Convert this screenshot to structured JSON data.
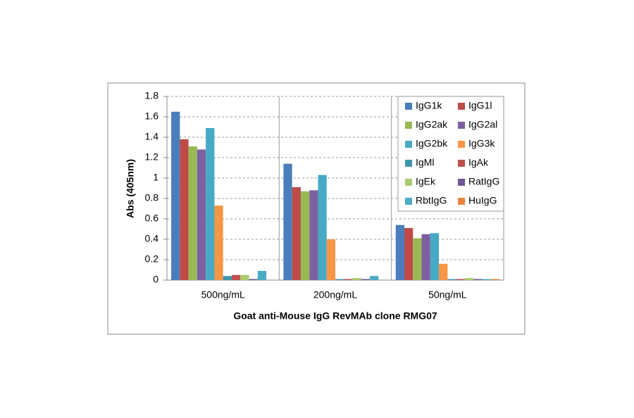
{
  "chart_data": {
    "type": "bar",
    "xlabel": "Goat anti-Mouse IgG RevMAb clone RMG07",
    "ylabel": "Abs (405nm)",
    "categories": [
      "500ng/mL",
      "200ng/mL",
      "50ng/mL"
    ],
    "series": [
      {
        "name": "IgG1k",
        "color": "#4a7ebb",
        "values": [
          1.65,
          1.14,
          0.54
        ]
      },
      {
        "name": "IgG1l",
        "color": "#be4b48",
        "values": [
          1.38,
          0.91,
          0.51
        ]
      },
      {
        "name": "IgG2ak",
        "color": "#98b954",
        "values": [
          1.31,
          0.87,
          0.41
        ]
      },
      {
        "name": "IgG2al",
        "color": "#7d60a0",
        "values": [
          1.28,
          0.88,
          0.45
        ]
      },
      {
        "name": "IgG2bk",
        "color": "#46aac5",
        "values": [
          1.49,
          1.03,
          0.46
        ]
      },
      {
        "name": "IgG3k",
        "color": "#f69646",
        "values": [
          0.73,
          0.4,
          0.16
        ]
      },
      {
        "name": "IgMl",
        "color": "#3d96ae",
        "values": [
          0.04,
          0.01,
          0.01
        ]
      },
      {
        "name": "IgAk",
        "color": "#c0504d",
        "values": [
          0.05,
          0.01,
          0.01
        ]
      },
      {
        "name": "IgEk",
        "color": "#a9cb6c",
        "values": [
          0.05,
          0.02,
          0.02
        ]
      },
      {
        "name": "RatIgG",
        "color": "#6f5693",
        "values": [
          0.01,
          0.01,
          0.01
        ]
      },
      {
        "name": "RbtIgG",
        "color": "#4bacc6",
        "values": [
          0.09,
          0.04,
          0.01
        ]
      },
      {
        "name": "HuIgG",
        "color": "#e8843b",
        "values": [
          0.0,
          0.0,
          0.01
        ]
      }
    ],
    "ylim": [
      0,
      1.8
    ],
    "yticks": [
      0,
      0.2,
      0.4,
      0.6,
      0.8,
      1,
      1.2,
      1.4,
      1.6,
      1.8
    ],
    "grid": true,
    "legend": "top-right"
  }
}
